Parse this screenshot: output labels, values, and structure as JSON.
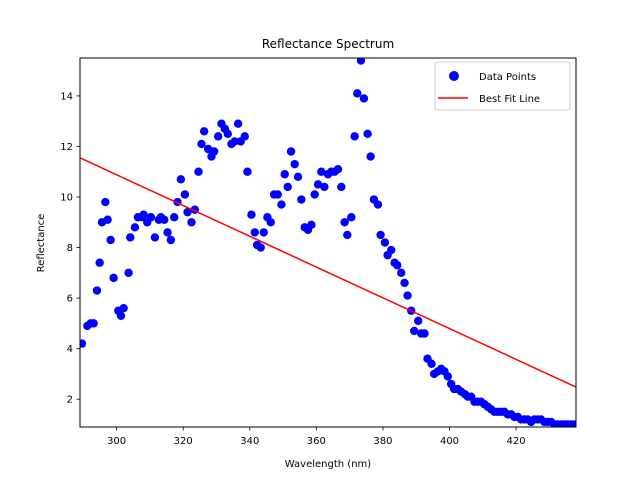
{
  "chart_data": {
    "type": "scatter",
    "title": "Reflectance Spectrum",
    "xlabel": "Wavelength (nm)",
    "ylabel": "Reflectance",
    "xlim": [
      289,
      438
    ],
    "ylim": [
      0.9,
      15.5
    ],
    "xticks": [
      300,
      320,
      340,
      360,
      380,
      400,
      420
    ],
    "yticks": [
      2,
      4,
      6,
      8,
      10,
      12,
      14
    ],
    "grid": false,
    "legend_position": "top-right",
    "series": [
      {
        "name": "Data Points",
        "kind": "scatter",
        "color": "#0000ff",
        "points": [
          [
            289.6,
            4.2
          ],
          [
            291.2,
            4.9
          ],
          [
            292.2,
            5.0
          ],
          [
            293.1,
            5.0
          ],
          [
            294.1,
            6.3
          ],
          [
            294.9,
            7.4
          ],
          [
            295.6,
            9.0
          ],
          [
            296.6,
            9.8
          ],
          [
            297.3,
            9.1
          ],
          [
            298.2,
            8.3
          ],
          [
            299.1,
            6.8
          ],
          [
            300.5,
            5.5
          ],
          [
            301.3,
            5.3
          ],
          [
            302.1,
            5.6
          ],
          [
            303.6,
            7.0
          ],
          [
            304.1,
            8.4
          ],
          [
            305.5,
            8.8
          ],
          [
            306.4,
            9.2
          ],
          [
            307.6,
            9.2
          ],
          [
            308.1,
            9.3
          ],
          [
            309.2,
            9.0
          ],
          [
            310.3,
            9.2
          ],
          [
            311.5,
            8.4
          ],
          [
            312.7,
            9.1
          ],
          [
            313.3,
            9.2
          ],
          [
            314.3,
            9.1
          ],
          [
            315.3,
            8.6
          ],
          [
            316.3,
            8.3
          ],
          [
            317.3,
            9.2
          ],
          [
            318.3,
            9.8
          ],
          [
            319.3,
            10.7
          ],
          [
            320.5,
            10.1
          ],
          [
            321.3,
            9.4
          ],
          [
            322.5,
            9.0
          ],
          [
            323.5,
            9.5
          ],
          [
            324.6,
            11.0
          ],
          [
            325.5,
            12.1
          ],
          [
            326.3,
            12.6
          ],
          [
            327.5,
            11.9
          ],
          [
            328.5,
            11.6
          ],
          [
            329.3,
            11.8
          ],
          [
            330.5,
            12.4
          ],
          [
            331.5,
            12.9
          ],
          [
            332.5,
            12.7
          ],
          [
            333.4,
            12.5
          ],
          [
            334.5,
            12.1
          ],
          [
            335.5,
            12.2
          ],
          [
            336.5,
            12.9
          ],
          [
            337.3,
            12.2
          ],
          [
            338.5,
            12.4
          ],
          [
            339.3,
            11.0
          ],
          [
            340.5,
            9.3
          ],
          [
            341.5,
            8.6
          ],
          [
            342.2,
            8.1
          ],
          [
            343.3,
            8.0
          ],
          [
            344.2,
            8.6
          ],
          [
            345.3,
            9.2
          ],
          [
            346.3,
            9.0
          ],
          [
            347.3,
            10.1
          ],
          [
            348.4,
            10.1
          ],
          [
            349.5,
            9.7
          ],
          [
            350.5,
            10.9
          ],
          [
            351.4,
            10.4
          ],
          [
            352.4,
            11.8
          ],
          [
            353.5,
            11.3
          ],
          [
            354.5,
            10.8
          ],
          [
            355.5,
            9.9
          ],
          [
            356.5,
            8.8
          ],
          [
            357.5,
            8.7
          ],
          [
            358.5,
            8.9
          ],
          [
            359.5,
            10.1
          ],
          [
            360.5,
            10.5
          ],
          [
            361.5,
            11.0
          ],
          [
            362.4,
            10.4
          ],
          [
            363.5,
            10.9
          ],
          [
            364.5,
            11.0
          ],
          [
            365.5,
            11.0
          ],
          [
            366.5,
            11.1
          ],
          [
            367.5,
            10.4
          ],
          [
            368.5,
            9.0
          ],
          [
            369.3,
            8.5
          ],
          [
            370.5,
            9.2
          ],
          [
            371.5,
            12.4
          ],
          [
            372.3,
            14.1
          ],
          [
            373.4,
            15.4
          ],
          [
            374.3,
            13.9
          ],
          [
            375.4,
            12.5
          ],
          [
            376.3,
            11.6
          ],
          [
            377.3,
            9.9
          ],
          [
            378.5,
            9.7
          ],
          [
            379.3,
            8.5
          ],
          [
            380.6,
            8.2
          ],
          [
            381.4,
            7.7
          ],
          [
            382.5,
            7.9
          ],
          [
            383.5,
            7.4
          ],
          [
            384.3,
            7.3
          ],
          [
            385.5,
            7.0
          ],
          [
            386.5,
            6.6
          ],
          [
            387.4,
            6.1
          ],
          [
            388.5,
            5.5
          ],
          [
            389.4,
            4.7
          ],
          [
            390.6,
            5.1
          ],
          [
            391.5,
            4.6
          ],
          [
            392.5,
            4.6
          ],
          [
            393.4,
            3.6
          ],
          [
            394.6,
            3.4
          ],
          [
            395.4,
            3.0
          ],
          [
            396.5,
            3.1
          ],
          [
            397.5,
            3.2
          ],
          [
            398.5,
            3.1
          ],
          [
            399.5,
            2.9
          ],
          [
            400.5,
            2.6
          ],
          [
            401.4,
            2.4
          ],
          [
            402.5,
            2.4
          ],
          [
            403.5,
            2.3
          ],
          [
            404.6,
            2.2
          ],
          [
            405.5,
            2.1
          ],
          [
            406.5,
            2.1
          ],
          [
            407.5,
            1.9
          ],
          [
            408.5,
            1.9
          ],
          [
            409.5,
            1.9
          ],
          [
            410.5,
            1.8
          ],
          [
            411.5,
            1.7
          ],
          [
            412.5,
            1.6
          ],
          [
            413.5,
            1.5
          ],
          [
            414.5,
            1.5
          ],
          [
            415.5,
            1.5
          ],
          [
            416.5,
            1.5
          ],
          [
            417.5,
            1.4
          ],
          [
            418.5,
            1.4
          ],
          [
            419.5,
            1.3
          ],
          [
            420.5,
            1.3
          ],
          [
            421.5,
            1.2
          ],
          [
            422.5,
            1.2
          ],
          [
            423.5,
            1.2
          ],
          [
            424.5,
            1.1
          ],
          [
            425.5,
            1.2
          ],
          [
            426.5,
            1.2
          ],
          [
            427.5,
            1.2
          ],
          [
            428.5,
            1.1
          ],
          [
            429.5,
            1.1
          ],
          [
            430.5,
            1.1
          ],
          [
            431.5,
            1.0
          ],
          [
            432.5,
            1.0
          ],
          [
            433.5,
            1.0
          ],
          [
            434.5,
            1.0
          ],
          [
            435.5,
            1.0
          ],
          [
            436.5,
            1.0
          ],
          [
            437.5,
            1.0
          ]
        ]
      },
      {
        "name": "Best Fit Line",
        "kind": "line",
        "color": "#ff0000",
        "points": [
          [
            289,
            11.55
          ],
          [
            438,
            2.48
          ]
        ]
      }
    ]
  }
}
